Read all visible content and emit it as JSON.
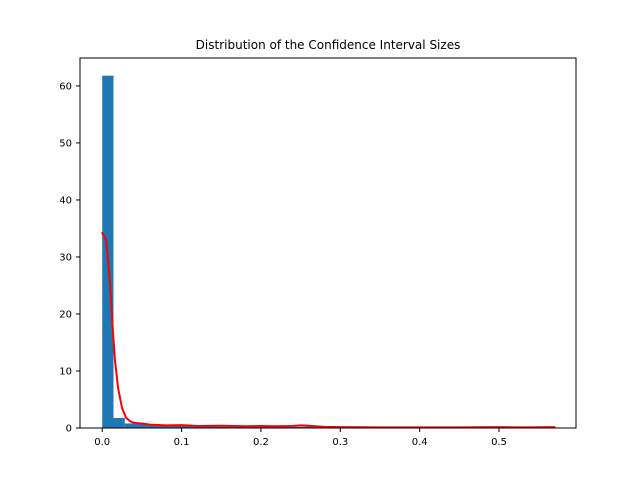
{
  "chart_data": {
    "type": "bar",
    "title": "Distribution of the Confidence Interval Sizes",
    "xlabel": "",
    "ylabel": "",
    "xlim": [
      -0.028,
      0.597
    ],
    "ylim": [
      0,
      64.9
    ],
    "xticks": [
      0.0,
      0.1,
      0.2,
      0.3,
      0.4,
      0.5
    ],
    "xtick_labels": [
      "0.0",
      "0.1",
      "0.2",
      "0.3",
      "0.4",
      "0.5"
    ],
    "yticks": [
      0,
      10,
      20,
      30,
      40,
      50,
      60
    ],
    "ytick_labels": [
      "0",
      "10",
      "20",
      "30",
      "40",
      "50",
      "60"
    ],
    "grid": false,
    "bar_color": "#1f77b4",
    "bin_width": 0.0142,
    "bin_edges_start": 0.0,
    "histogram_values": [
      61.8,
      1.75,
      0.8,
      0.75,
      0.7,
      0.5,
      0.4,
      0.45,
      0.3,
      0.3,
      0.25,
      0.3,
      0.2,
      0.2,
      0.2,
      0.2,
      0.2,
      0.2,
      0.25,
      0.2,
      0.2,
      0.2,
      0.2,
      0.2,
      0.2,
      0.2,
      0.2,
      0.2,
      0.2,
      0.2,
      0.2,
      0.2,
      0.2,
      0.2,
      0.2,
      0.2,
      0.2,
      0.2,
      0.2,
      0.2
    ],
    "series": [
      {
        "name": "density curve",
        "type": "line",
        "color": "#ff0000",
        "x": [
          0.0,
          0.005,
          0.01,
          0.013,
          0.016,
          0.02,
          0.025,
          0.03,
          0.035,
          0.04,
          0.05,
          0.06,
          0.08,
          0.1,
          0.12,
          0.15,
          0.18,
          0.2,
          0.22,
          0.24,
          0.25,
          0.26,
          0.28,
          0.3,
          0.35,
          0.4,
          0.45,
          0.5,
          0.53,
          0.57
        ],
        "y": [
          34.2,
          33.0,
          25.0,
          18.0,
          12.0,
          7.0,
          3.5,
          1.8,
          1.2,
          0.9,
          0.8,
          0.6,
          0.45,
          0.5,
          0.35,
          0.4,
          0.3,
          0.35,
          0.3,
          0.35,
          0.45,
          0.4,
          0.2,
          0.15,
          0.1,
          0.1,
          0.12,
          0.15,
          0.1,
          0.15
        ]
      }
    ]
  }
}
